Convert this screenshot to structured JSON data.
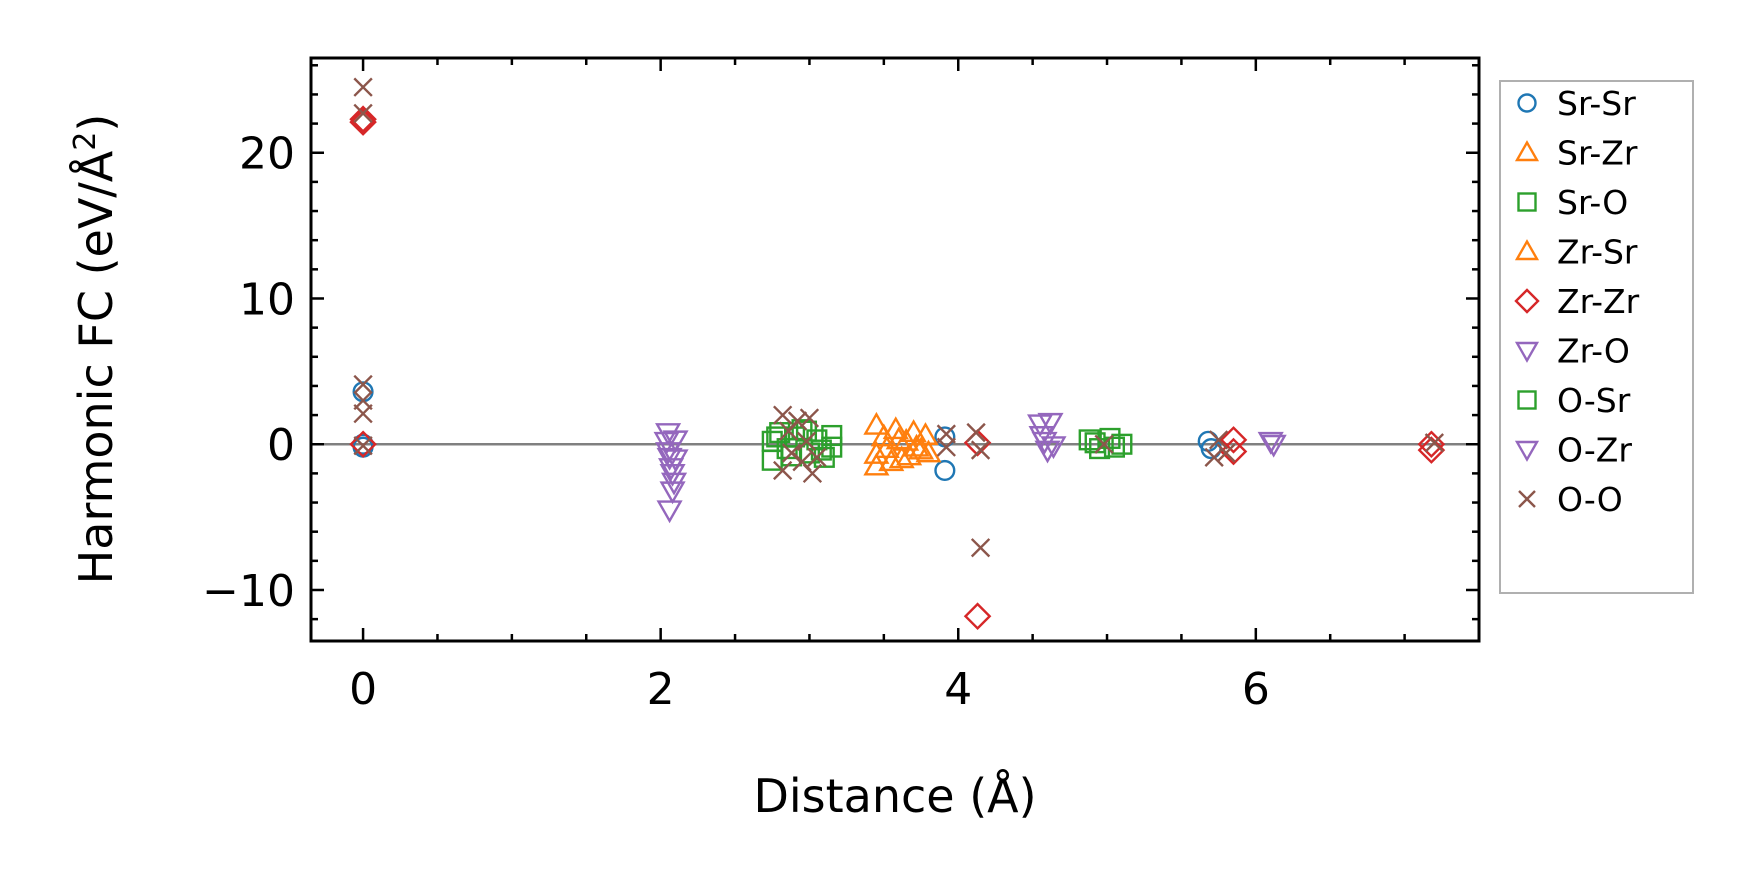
{
  "chart_data": {
    "type": "scatter",
    "xlabel": "Distance (Å)",
    "ylabel": "Harmonic FC (eV/Å",
    "ylabel_sup": "2",
    "ylabel_close": ")",
    "xlim": [
      -0.35,
      7.5
    ],
    "ylim": [
      -13.5,
      26.5
    ],
    "xticks": [
      0,
      2,
      4,
      6
    ],
    "xtick_labels": [
      "0",
      "2",
      "4",
      "6"
    ],
    "yticks": [
      -10,
      0,
      10,
      20
    ],
    "ytick_labels": [
      "−10",
      "0",
      "10",
      "20"
    ],
    "x_minor_step": 0.5,
    "y_minor_step": 2,
    "zero_line": true,
    "grid": false,
    "legend_position": "right-outside-top",
    "series": [
      {
        "name": "Sr-Sr",
        "marker": "circle",
        "color": "#1f77b4",
        "points": [
          [
            0,
            3.6
          ],
          [
            0,
            0.0
          ],
          [
            0,
            -0.2
          ],
          [
            3.91,
            0.5
          ],
          [
            3.91,
            -1.8
          ],
          [
            5.68,
            0.2
          ],
          [
            5.7,
            -0.3
          ]
        ]
      },
      {
        "name": "Sr-Zr",
        "marker": "triangle-up",
        "color": "#ff7f0e",
        "points": [
          [
            3.45,
            1.3
          ],
          [
            3.45,
            -0.7
          ],
          [
            3.45,
            -1.5
          ],
          [
            3.52,
            -0.3
          ],
          [
            3.58,
            1.0
          ],
          [
            3.6,
            0.3
          ],
          [
            3.62,
            -1.0
          ],
          [
            3.67,
            -0.8
          ],
          [
            3.7,
            0.8
          ],
          [
            3.72,
            -0.2
          ],
          [
            3.78,
            0.6
          ],
          [
            3.8,
            -0.6
          ]
        ]
      },
      {
        "name": "Sr-O",
        "marker": "square",
        "color": "#2ca02c",
        "points": [
          [
            2.75,
            0.2
          ],
          [
            2.75,
            -1.1
          ],
          [
            2.8,
            0.8
          ],
          [
            2.85,
            -0.3
          ],
          [
            2.9,
            0.5
          ],
          [
            2.95,
            1.0
          ],
          [
            3.0,
            -0.6
          ],
          [
            3.05,
            0.3
          ],
          [
            3.1,
            -0.9
          ],
          [
            3.15,
            0.6
          ],
          [
            3.15,
            -0.2
          ],
          [
            4.88,
            0.3
          ],
          [
            4.95,
            -0.3
          ],
          [
            5.02,
            0.4
          ],
          [
            5.1,
            0.0
          ]
        ]
      },
      {
        "name": "Zr-Sr",
        "marker": "triangle-up",
        "color": "#ff7f0e",
        "points": [
          [
            3.5,
            0.5
          ],
          [
            3.55,
            -1.2
          ],
          [
            3.65,
            0.2
          ],
          [
            3.75,
            -0.4
          ]
        ]
      },
      {
        "name": "Zr-Zr",
        "marker": "diamond",
        "color": "#d62728",
        "points": [
          [
            0,
            22.3
          ],
          [
            0,
            22.1
          ],
          [
            0,
            0.0
          ],
          [
            4.13,
            0.1
          ],
          [
            4.13,
            -11.8
          ],
          [
            5.85,
            0.3
          ],
          [
            5.85,
            -0.5
          ],
          [
            7.18,
            0.0
          ],
          [
            7.18,
            -0.4
          ]
        ]
      },
      {
        "name": "Zr-O",
        "marker": "triangle-down",
        "color": "#9467bd",
        "points": [
          [
            2.05,
            0.8
          ],
          [
            2.05,
            -0.5
          ],
          [
            2.07,
            -1.6
          ],
          [
            2.08,
            -2.0
          ],
          [
            2.08,
            -3.2
          ],
          [
            2.06,
            -4.5
          ],
          [
            2.1,
            0.3
          ],
          [
            2.1,
            -1.0
          ],
          [
            4.55,
            1.4
          ],
          [
            4.58,
            0.2
          ],
          [
            4.62,
            1.5
          ],
          [
            4.6,
            -0.4
          ],
          [
            6.1,
            0.2
          ]
        ]
      },
      {
        "name": "O-Sr",
        "marker": "square",
        "color": "#2ca02c",
        "points": [
          [
            2.78,
            0.5
          ],
          [
            2.88,
            -0.8
          ],
          [
            2.98,
            0.9
          ],
          [
            3.08,
            -0.4
          ],
          [
            4.92,
            0.1
          ],
          [
            5.05,
            -0.2
          ]
        ]
      },
      {
        "name": "O-Zr",
        "marker": "triangle-down",
        "color": "#9467bd",
        "points": [
          [
            2.04,
            0.2
          ],
          [
            2.06,
            -0.9
          ],
          [
            2.09,
            -2.6
          ],
          [
            4.56,
            0.6
          ],
          [
            4.64,
            -0.1
          ],
          [
            6.12,
            0.0
          ]
        ]
      },
      {
        "name": "O-O",
        "marker": "x",
        "color": "#8c564b",
        "points": [
          [
            0,
            24.5
          ],
          [
            0,
            22.7
          ],
          [
            0,
            4.1
          ],
          [
            0,
            3.0
          ],
          [
            0,
            2.1
          ],
          [
            0,
            -0.1
          ],
          [
            2.82,
            2.0
          ],
          [
            2.82,
            -1.8
          ],
          [
            2.86,
            0.9
          ],
          [
            2.88,
            -0.6
          ],
          [
            2.92,
            1.6
          ],
          [
            2.95,
            -1.2
          ],
          [
            2.98,
            0.2
          ],
          [
            3.0,
            1.8
          ],
          [
            3.02,
            -2.0
          ],
          [
            3.05,
            -0.9
          ],
          [
            3.92,
            0.7
          ],
          [
            3.92,
            -0.2
          ],
          [
            4.12,
            0.8
          ],
          [
            4.15,
            -0.4
          ],
          [
            4.15,
            -7.1
          ],
          [
            4.98,
            0.0
          ],
          [
            5.72,
            -0.9
          ],
          [
            5.75,
            0.3
          ],
          [
            5.8,
            -0.6
          ],
          [
            7.2,
            0.1
          ]
        ]
      }
    ]
  }
}
